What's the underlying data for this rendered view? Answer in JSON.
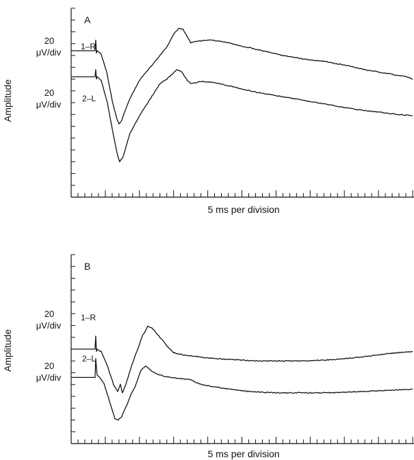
{
  "chart_data": [
    {
      "type": "line",
      "panel_label": "A",
      "ylabel": "Amplitude",
      "xlabel": "5 ms per division",
      "x_divisions": 50,
      "y_divisions": 16,
      "series": [
        {
          "name": "1–R",
          "scale_value": "20",
          "scale_unit": "μV/div",
          "baseline_div": 12.4,
          "points": [
            [
              0,
              0
            ],
            [
              3.5,
              0
            ],
            [
              3.6,
              0.9
            ],
            [
              3.7,
              -0.2
            ],
            [
              3.8,
              0
            ],
            [
              4.4,
              -0.3
            ],
            [
              5.2,
              -1.8
            ],
            [
              6.0,
              -4.2
            ],
            [
              6.6,
              -5.6
            ],
            [
              7.0,
              -6.2
            ],
            [
              7.4,
              -5.9
            ],
            [
              8.4,
              -4.3
            ],
            [
              10.0,
              -2.5
            ],
            [
              12.0,
              -1.1
            ],
            [
              14.0,
              0.3
            ],
            [
              15.0,
              1.4
            ],
            [
              15.8,
              1.9
            ],
            [
              16.4,
              1.8
            ],
            [
              17.0,
              1.2
            ],
            [
              17.5,
              0.7
            ],
            [
              18.5,
              0.8
            ],
            [
              20.0,
              0.9
            ],
            [
              22.0,
              0.8
            ],
            [
              25.0,
              0.4
            ],
            [
              28.0,
              0.0
            ],
            [
              31.0,
              -0.4
            ],
            [
              34.0,
              -0.7
            ],
            [
              37.0,
              -0.9
            ],
            [
              40.0,
              -1.2
            ],
            [
              43.0,
              -1.6
            ],
            [
              46.0,
              -1.9
            ],
            [
              49.0,
              -2.2
            ],
            [
              50.0,
              -2.4
            ]
          ]
        },
        {
          "name": "2–L",
          "scale_value": "20",
          "scale_unit": "μV/div",
          "baseline_div": 10.2,
          "points": [
            [
              0,
              0
            ],
            [
              3.5,
              0
            ],
            [
              3.6,
              0.6
            ],
            [
              3.7,
              -0.2
            ],
            [
              3.8,
              0
            ],
            [
              4.4,
              -0.3
            ],
            [
              5.3,
              -2.2
            ],
            [
              6.2,
              -5.0
            ],
            [
              6.8,
              -6.7
            ],
            [
              7.1,
              -7.2
            ],
            [
              7.6,
              -6.8
            ],
            [
              8.6,
              -4.8
            ],
            [
              10.0,
              -3.3
            ],
            [
              12.0,
              -1.5
            ],
            [
              13.0,
              -0.6
            ],
            [
              14.0,
              -0.2
            ],
            [
              15.5,
              0.6
            ],
            [
              16.2,
              0.4
            ],
            [
              17.0,
              -0.3
            ],
            [
              17.6,
              -0.6
            ],
            [
              19.0,
              -0.4
            ],
            [
              21.0,
              -0.5
            ],
            [
              24.0,
              -0.9
            ],
            [
              27.0,
              -1.3
            ],
            [
              30.0,
              -1.6
            ],
            [
              33.0,
              -1.9
            ],
            [
              36.0,
              -2.2
            ],
            [
              39.0,
              -2.5
            ],
            [
              42.0,
              -2.8
            ],
            [
              45.0,
              -3.0
            ],
            [
              48.0,
              -3.2
            ],
            [
              50.0,
              -3.3
            ]
          ]
        }
      ]
    },
    {
      "type": "line",
      "panel_label": "B",
      "ylabel": "Amplitude",
      "xlabel": "5 ms per division",
      "x_divisions": 50,
      "y_divisions": 16,
      "series": [
        {
          "name": "1–R",
          "scale_value": "20",
          "scale_unit": "μV/div",
          "baseline_div": 8.0,
          "points": [
            [
              0,
              0
            ],
            [
              3.5,
              0
            ],
            [
              3.6,
              1.1
            ],
            [
              3.7,
              -0.2
            ],
            [
              3.8,
              0
            ],
            [
              4.4,
              -0.2
            ],
            [
              5.3,
              -1.4
            ],
            [
              6.2,
              -3.0
            ],
            [
              6.8,
              -3.6
            ],
            [
              7.2,
              -3.0
            ],
            [
              7.5,
              -3.7
            ],
            [
              8.0,
              -3.0
            ],
            [
              8.8,
              -1.5
            ],
            [
              9.6,
              -0.2
            ],
            [
              10.5,
              1.2
            ],
            [
              11.2,
              1.9
            ],
            [
              11.8,
              1.8
            ],
            [
              13.0,
              1.0
            ],
            [
              14.0,
              0.3
            ],
            [
              15.0,
              -0.3
            ],
            [
              16.5,
              -0.5
            ],
            [
              18.0,
              -0.6
            ],
            [
              21.0,
              -0.8
            ],
            [
              24.0,
              -0.9
            ],
            [
              27.0,
              -1.0
            ],
            [
              30.0,
              -1.0
            ],
            [
              34.0,
              -1.0
            ],
            [
              38.0,
              -0.9
            ],
            [
              42.0,
              -0.7
            ],
            [
              46.0,
              -0.4
            ],
            [
              50.0,
              -0.2
            ]
          ]
        },
        {
          "name": "2–L",
          "scale_value": "20",
          "scale_unit": "μV/div",
          "baseline_div": 5.6,
          "points": [
            [
              0,
              0
            ],
            [
              3.5,
              0
            ],
            [
              3.6,
              1.6
            ],
            [
              3.8,
              0.2
            ],
            [
              4.2,
              0
            ],
            [
              4.8,
              -0.5
            ],
            [
              5.6,
              -2.0
            ],
            [
              6.4,
              -3.5
            ],
            [
              6.9,
              -3.6
            ],
            [
              7.4,
              -3.3
            ],
            [
              8.2,
              -2.3
            ],
            [
              8.8,
              -1.4
            ],
            [
              9.4,
              -0.7
            ],
            [
              10.2,
              0.6
            ],
            [
              10.9,
              1.0
            ],
            [
              11.8,
              0.5
            ],
            [
              13.0,
              0.2
            ],
            [
              14.5,
              0.0
            ],
            [
              16.0,
              -0.1
            ],
            [
              17.5,
              -0.2
            ],
            [
              19.0,
              -0.6
            ],
            [
              22.0,
              -0.9
            ],
            [
              26.0,
              -1.2
            ],
            [
              30.0,
              -1.3
            ],
            [
              34.0,
              -1.3
            ],
            [
              38.0,
              -1.3
            ],
            [
              42.0,
              -1.2
            ],
            [
              46.0,
              -1.1
            ],
            [
              50.0,
              -1.0
            ]
          ]
        }
      ]
    }
  ]
}
